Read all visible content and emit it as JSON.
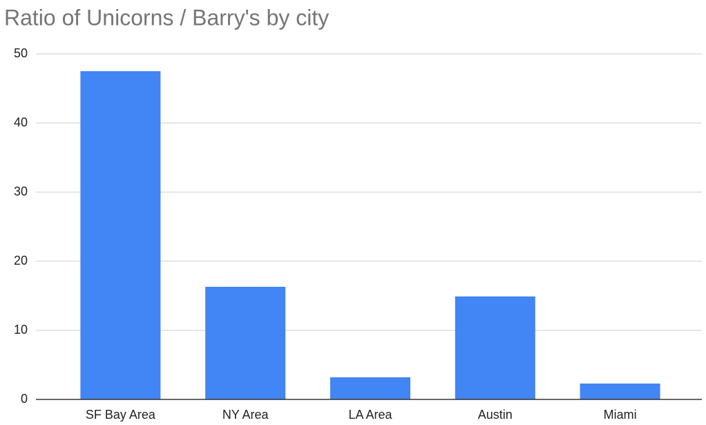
{
  "chart_data": {
    "type": "bar",
    "title": "Ratio of Unicorns / Barry's by city",
    "categories": [
      "SF Bay Area",
      "NY Area",
      "LA Area",
      "Austin",
      "Miami"
    ],
    "values": [
      47.5,
      16.3,
      3.2,
      14.9,
      2.3
    ],
    "color": "#4285f4",
    "ylim": [
      0,
      50
    ],
    "yticks": [
      0,
      10,
      20,
      30,
      40,
      50
    ],
    "grid": true
  }
}
